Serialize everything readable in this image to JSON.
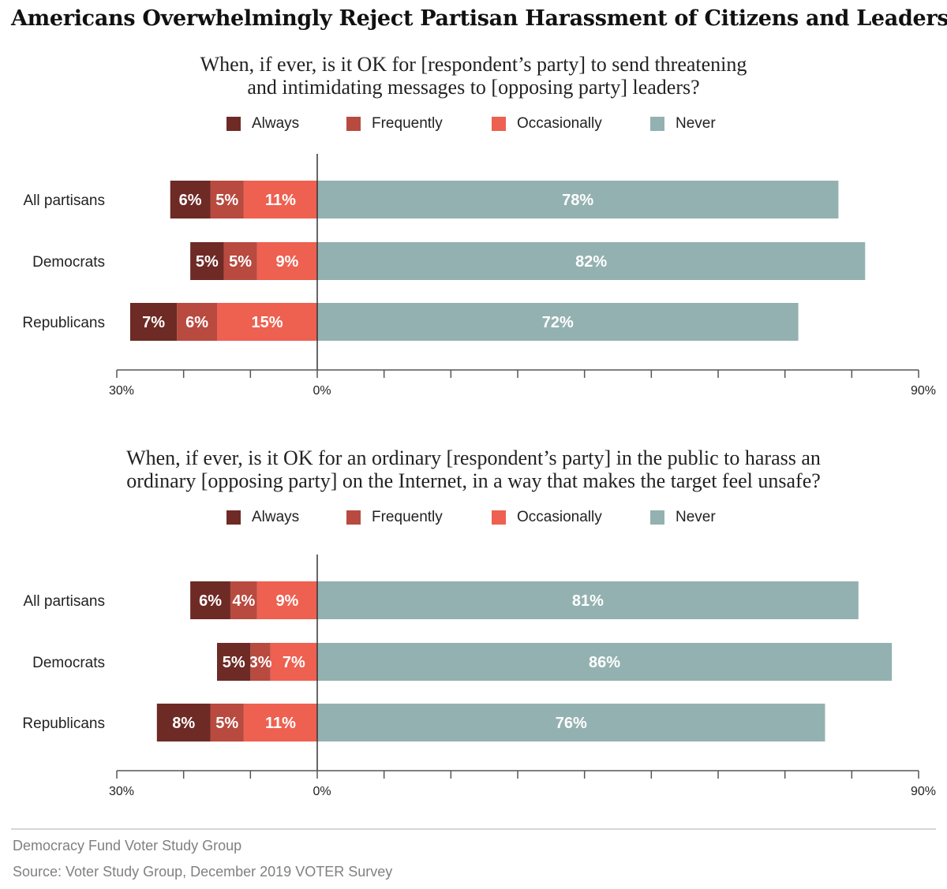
{
  "title": "Americans Overwhelmingly Reject Partisan Harassment of Citizens and Leaders",
  "legend": [
    {
      "label": "Always",
      "color": "#6e2a25"
    },
    {
      "label": "Frequently",
      "color": "#b84a3f"
    },
    {
      "label": "Occasionally",
      "color": "#ee6050"
    },
    {
      "label": "Never",
      "color": "#94b1b1"
    }
  ],
  "chart_data": [
    {
      "type": "bar",
      "subtype": "diverging-stacked-horizontal",
      "title": "When, if ever, is it OK for [respondent’s party] to send threatening and intimidating messages to [opposing party] leaders?",
      "title_lines": [
        "When, if ever, is it OK for [respondent’s party] to send threatening",
        "and intimidating messages to [opposing party] leaders?"
      ],
      "categories": [
        "All partisans",
        "Democrats",
        "Republicans"
      ],
      "series": [
        {
          "name": "Always",
          "values": [
            6,
            5,
            7
          ],
          "side": "left"
        },
        {
          "name": "Frequently",
          "values": [
            5,
            5,
            6
          ],
          "side": "left"
        },
        {
          "name": "Occasionally",
          "values": [
            11,
            9,
            15
          ],
          "side": "left"
        },
        {
          "name": "Never",
          "values": [
            78,
            82,
            72
          ],
          "side": "right"
        }
      ],
      "xlim": [
        -30,
        90
      ],
      "tick_step": 10,
      "tick_labels": [
        {
          "value": -30,
          "label": "30%"
        },
        {
          "value": 0,
          "label": "0%"
        },
        {
          "value": 90,
          "label": "90%"
        }
      ],
      "legend_position": "top-center",
      "grid": false
    },
    {
      "type": "bar",
      "subtype": "diverging-stacked-horizontal",
      "title": "When, if ever, is it OK for an ordinary [respondent’s party] in the public to harass an ordinary [opposing party] on the Internet, in a way that makes the target feel unsafe?",
      "title_lines": [
        "When, if ever, is it OK for an ordinary [respondent’s party] in the public to harass an",
        "ordinary [opposing party] on the Internet, in a way that makes the target feel unsafe?"
      ],
      "categories": [
        "All partisans",
        "Democrats",
        "Republicans"
      ],
      "series": [
        {
          "name": "Always",
          "values": [
            6,
            5,
            8
          ],
          "side": "left"
        },
        {
          "name": "Frequently",
          "values": [
            4,
            3,
            5
          ],
          "side": "left"
        },
        {
          "name": "Occasionally",
          "values": [
            9,
            7,
            11
          ],
          "side": "left"
        },
        {
          "name": "Never",
          "values": [
            81,
            86,
            76
          ],
          "side": "right"
        }
      ],
      "xlim": [
        -30,
        90
      ],
      "tick_step": 10,
      "tick_labels": [
        {
          "value": -30,
          "label": "30%"
        },
        {
          "value": 0,
          "label": "0%"
        },
        {
          "value": 90,
          "label": "90%"
        }
      ],
      "legend_position": "top-center",
      "grid": false
    }
  ],
  "footer": {
    "org": "Democracy Fund Voter Study Group",
    "source": "Source: Voter Study Group, December 2019 VOTER Survey"
  }
}
